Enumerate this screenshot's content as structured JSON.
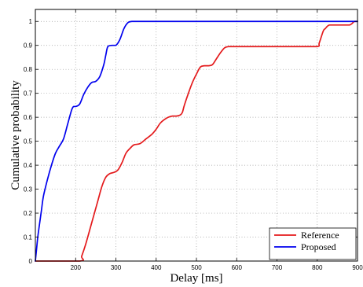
{
  "chart_data": {
    "type": "line",
    "title": "",
    "xlabel": "Delay  [ms]",
    "ylabel": "Cumulative probability",
    "xlim": [
      100,
      900
    ],
    "ylim": [
      0,
      1.05
    ],
    "xticks": [
      200,
      300,
      400,
      500,
      600,
      700,
      800,
      900
    ],
    "yticks": [
      0,
      0.1,
      0.2,
      0.3,
      0.4,
      0.5,
      0.6,
      0.7,
      0.8,
      0.9,
      1
    ],
    "xtick_labels": [
      "200",
      "300",
      "400",
      "500",
      "600",
      "700",
      "800",
      "900"
    ],
    "ytick_labels": [
      "0",
      "0.1",
      "0.2",
      "0.3",
      "0.4",
      "0.5",
      "0.6",
      "0.7",
      "0.8",
      "0.9",
      "1"
    ],
    "grid": true,
    "legend_position": "bottom-right",
    "series": [
      {
        "name": "Reference",
        "color": "#e41a1c",
        "x": [
          100,
          210,
          215,
          225,
          240,
          255,
          265,
          275,
          285,
          295,
          305,
          315,
          325,
          335,
          345,
          360,
          375,
          390,
          400,
          410,
          420,
          430,
          440,
          450,
          460,
          465,
          470,
          480,
          490,
          500,
          510,
          520,
          530,
          540,
          550,
          560,
          570,
          580,
          600,
          650,
          700,
          750,
          800,
          805,
          815,
          820,
          830,
          850,
          880,
          892,
          900
        ],
        "y": [
          0,
          0,
          0.02,
          0.07,
          0.16,
          0.25,
          0.31,
          0.35,
          0.365,
          0.37,
          0.38,
          0.41,
          0.45,
          0.47,
          0.485,
          0.49,
          0.51,
          0.53,
          0.55,
          0.575,
          0.59,
          0.6,
          0.605,
          0.605,
          0.61,
          0.62,
          0.65,
          0.7,
          0.745,
          0.78,
          0.81,
          0.815,
          0.815,
          0.82,
          0.845,
          0.87,
          0.89,
          0.895,
          0.895,
          0.895,
          0.895,
          0.895,
          0.895,
          0.91,
          0.96,
          0.97,
          0.985,
          0.985,
          0.985,
          1.0,
          1.0
        ]
      },
      {
        "name": "Proposed",
        "color": "#0000ee",
        "x": [
          100,
          103,
          106,
          110,
          115,
          120,
          130,
          140,
          150,
          160,
          170,
          180,
          190,
          195,
          200,
          210,
          220,
          230,
          240,
          250,
          260,
          270,
          275,
          280,
          290,
          300,
          310,
          320,
          330,
          340,
          350,
          400,
          500,
          600,
          700,
          800,
          900
        ],
        "y": [
          0,
          0.05,
          0.1,
          0.15,
          0.21,
          0.27,
          0.34,
          0.4,
          0.45,
          0.48,
          0.51,
          0.57,
          0.63,
          0.645,
          0.645,
          0.655,
          0.695,
          0.725,
          0.745,
          0.75,
          0.77,
          0.82,
          0.86,
          0.895,
          0.9,
          0.9,
          0.925,
          0.97,
          0.995,
          1.0,
          1.0,
          1.0,
          1.0,
          1.0,
          1.0,
          1.0,
          1.0
        ]
      }
    ]
  }
}
